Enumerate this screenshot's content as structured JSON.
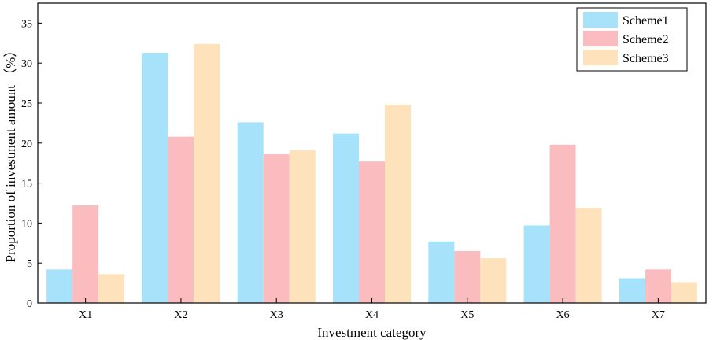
{
  "chart_data": {
    "type": "bar",
    "title": "",
    "xlabel": "Investment category",
    "ylabel": "Proportion of investment amount （%）",
    "categories": [
      "X1",
      "X2",
      "X3",
      "X4",
      "X5",
      "X6",
      "X7"
    ],
    "series": [
      {
        "name": "Scheme1",
        "color": "#a6e3fb",
        "values": [
          4.2,
          31.3,
          22.6,
          21.2,
          7.7,
          9.7,
          3.1
        ]
      },
      {
        "name": "Scheme2",
        "color": "#fbbcbf",
        "values": [
          12.2,
          20.8,
          18.6,
          17.7,
          6.5,
          19.8,
          4.2
        ]
      },
      {
        "name": "Scheme3",
        "color": "#fde2bc",
        "values": [
          3.6,
          32.4,
          19.1,
          24.8,
          5.6,
          11.9,
          2.6
        ]
      }
    ],
    "ylim": [
      0,
      37.5
    ],
    "yticks": [
      0,
      5,
      10,
      15,
      20,
      25,
      30,
      35
    ],
    "grid": false,
    "legend_position": "top-right"
  }
}
